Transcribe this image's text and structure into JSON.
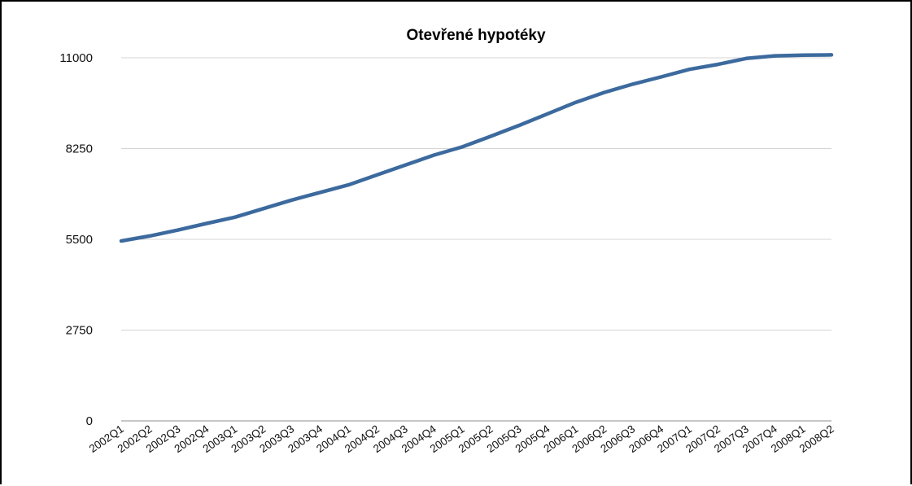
{
  "colors": {
    "series": "#3c6a9e",
    "frame": "#000000"
  },
  "chart_data": {
    "type": "line",
    "title": "Otevřené hypotéky",
    "xlabel": "",
    "ylabel": "",
    "ylim": [
      0,
      11000
    ],
    "yticks": [
      0,
      2750,
      5500,
      8250,
      11000
    ],
    "grid": true,
    "legend": "none",
    "categories": [
      "2002Q1",
      "2002Q2",
      "2002Q3",
      "2002Q4",
      "2003Q1",
      "2003Q2",
      "2003Q3",
      "2003Q4",
      "2004Q1",
      "2004Q2",
      "2004Q3",
      "2004Q4",
      "2005Q1",
      "2005Q2",
      "2005Q3",
      "2005Q4",
      "2006Q1",
      "2006Q2",
      "2006Q3",
      "2006Q4",
      "2007Q1",
      "2007Q2",
      "2007Q3",
      "2007Q4",
      "2008Q1",
      "2008Q2"
    ],
    "series": [
      {
        "values": [
          5450,
          5600,
          5780,
          5980,
          6170,
          6430,
          6690,
          6920,
          7150,
          7450,
          7750,
          8050,
          8300,
          8620,
          8950,
          9300,
          9650,
          9950,
          10200,
          10420,
          10650,
          10800,
          10980,
          11060,
          11080,
          11090
        ]
      }
    ]
  }
}
